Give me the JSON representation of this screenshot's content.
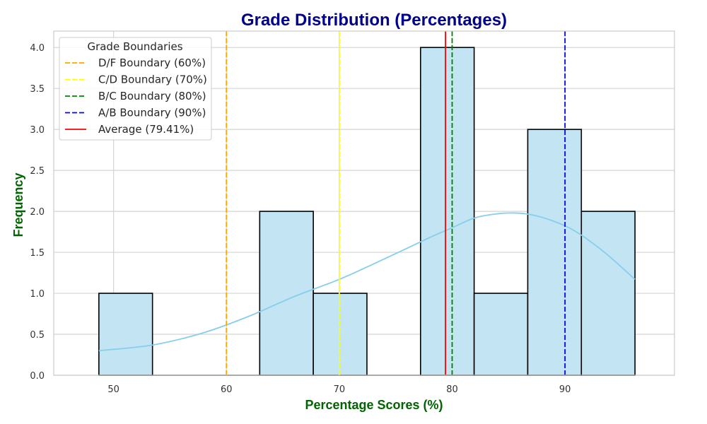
{
  "chart_data": {
    "type": "bar",
    "title": "Grade Distribution (Percentages)",
    "xlabel": "Percentage Scores (%)",
    "ylabel": "Frequency",
    "xlim": [
      44.7,
      99.7
    ],
    "ylim": [
      0,
      4.2
    ],
    "x_ticks": [
      "50",
      "60",
      "70",
      "80",
      "90"
    ],
    "y_ticks": [
      "0.0",
      "0.5",
      "1.0",
      "1.5",
      "2.0",
      "2.5",
      "3.0",
      "3.5",
      "4.0"
    ],
    "grid": true,
    "histogram": {
      "bin_edges": [
        48.7,
        53.45,
        58.2,
        62.95,
        67.7,
        72.45,
        77.2,
        81.95,
        86.7,
        91.45,
        96.2
      ],
      "counts": [
        1,
        0,
        0,
        2,
        1,
        0,
        4,
        1,
        3,
        2
      ],
      "fill_color": "#c2e4f3",
      "edge_color": "#000000"
    },
    "kde": {
      "color": "#87ceeb",
      "x": [
        48.7,
        53.5,
        58.0,
        62.0,
        66.0,
        70.0,
        74.0,
        78.0,
        80.0,
        82.0,
        84.0,
        85.5,
        87.0,
        89.0,
        91.0,
        93.5,
        96.2
      ],
      "y": [
        0.3,
        0.37,
        0.52,
        0.72,
        0.96,
        1.17,
        1.42,
        1.68,
        1.8,
        1.92,
        1.97,
        1.98,
        1.96,
        1.88,
        1.75,
        1.5,
        1.17
      ]
    },
    "reference_lines": [
      {
        "value": 60,
        "label": "D/F Boundary (60%)",
        "color": "#ffa500",
        "style": "dashed"
      },
      {
        "value": 70,
        "label": "C/D Boundary (70%)",
        "color": "#ffff00",
        "style": "dashed"
      },
      {
        "value": 80,
        "label": "B/C Boundary (80%)",
        "color": "#008000",
        "style": "dashed"
      },
      {
        "value": 90,
        "label": "A/B Boundary (90%)",
        "color": "#0000ff",
        "style": "dashed"
      },
      {
        "value": 79.41,
        "label": "Average (79.41%)",
        "color": "#ff0000",
        "style": "solid"
      }
    ],
    "legend": {
      "title": "Grade Boundaries",
      "placement": "top-left"
    },
    "title_color": "#00008b",
    "label_color": "#006400"
  }
}
